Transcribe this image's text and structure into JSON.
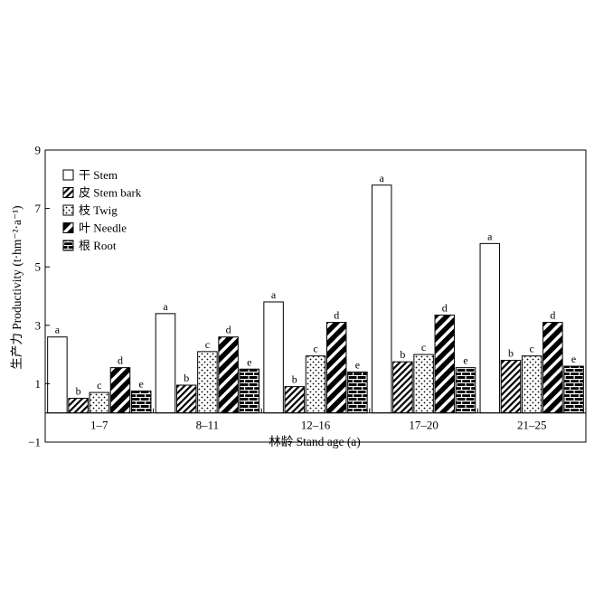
{
  "chart_data": {
    "type": "bar",
    "title": "",
    "xlabel": "林龄 Stand age (a)",
    "ylabel": "生产力 Productivity (t·hm⁻²·a⁻¹)",
    "ylim": [
      -1,
      9
    ],
    "yticks": [
      -1,
      1,
      3,
      5,
      7,
      9
    ],
    "categories": [
      "1–7",
      "8–11",
      "12–16",
      "17–20",
      "21–25"
    ],
    "legend_position": "top-left",
    "grid": false,
    "series": [
      {
        "name": "干 Stem",
        "pattern": "white",
        "values": [
          2.6,
          3.4,
          3.8,
          7.8,
          5.8
        ],
        "labels": [
          "a",
          "a",
          "a",
          "a",
          "a"
        ]
      },
      {
        "name": "皮 Stem bark",
        "pattern": "diagonal-fine",
        "values": [
          0.5,
          0.95,
          0.9,
          1.75,
          1.8
        ],
        "labels": [
          "b",
          "b",
          "b",
          "b",
          "b"
        ]
      },
      {
        "name": "枝 Twig",
        "pattern": "dots",
        "values": [
          0.7,
          2.1,
          1.95,
          2.0,
          1.95
        ],
        "labels": [
          "c",
          "c",
          "c",
          "c",
          "c"
        ]
      },
      {
        "name": "叶 Needle",
        "pattern": "diagonal-bold",
        "values": [
          1.55,
          2.6,
          3.1,
          3.35,
          3.1
        ],
        "labels": [
          "d",
          "d",
          "d",
          "d",
          "d"
        ]
      },
      {
        "name": "根 Root",
        "pattern": "brick",
        "values": [
          0.75,
          1.5,
          1.4,
          1.55,
          1.6
        ],
        "labels": [
          "e",
          "e",
          "e",
          "e",
          "e"
        ]
      }
    ]
  }
}
